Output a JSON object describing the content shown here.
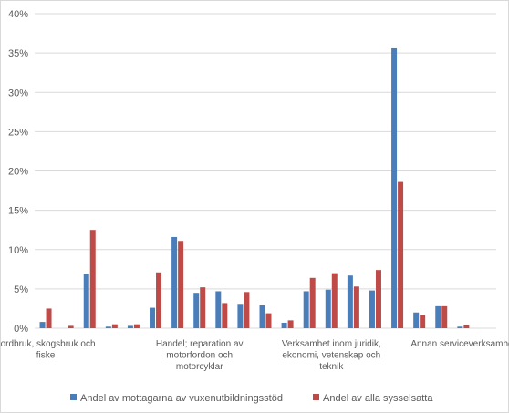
{
  "chart_data": {
    "type": "bar",
    "title": "",
    "xlabel": "",
    "ylabel": "",
    "ylim": [
      0,
      0.4
    ],
    "y_ticks": [
      "0%",
      "5%",
      "10%",
      "15%",
      "20%",
      "25%",
      "30%",
      "35%",
      "40%"
    ],
    "grid": true,
    "legend_position": "bottom",
    "category_count": 21,
    "category_labels": [
      {
        "index": 0,
        "lines": [
          "Jordbruk, skogsbruk och",
          "fiske"
        ]
      },
      {
        "index": 7,
        "lines": [
          "Handel; reparation av",
          "motorfordon och",
          "motorcyklar"
        ]
      },
      {
        "index": 13,
        "lines": [
          "Verksamhet  inom juridik,",
          "ekonomi, vetenskap  och",
          "teknik"
        ]
      },
      {
        "index": 19,
        "lines": [
          "Annan serviceverksamhet"
        ]
      }
    ],
    "series": [
      {
        "name": "Andel av mottagarna av vuxenutbildningsstöd",
        "color": "#4a7ebb",
        "values": [
          0.008,
          0.0,
          0.069,
          0.002,
          0.003,
          0.026,
          0.116,
          0.045,
          0.047,
          0.031,
          0.029,
          0.007,
          0.047,
          0.049,
          0.067,
          0.048,
          0.356,
          0.02,
          0.028,
          0.002,
          0.0
        ]
      },
      {
        "name": "Andel av alla sysselsatta",
        "color": "#be4b48",
        "values": [
          0.025,
          0.003,
          0.125,
          0.005,
          0.005,
          0.071,
          0.111,
          0.052,
          0.032,
          0.046,
          0.019,
          0.01,
          0.064,
          0.07,
          0.053,
          0.074,
          0.186,
          0.017,
          0.028,
          0.004,
          0.0
        ]
      }
    ]
  }
}
